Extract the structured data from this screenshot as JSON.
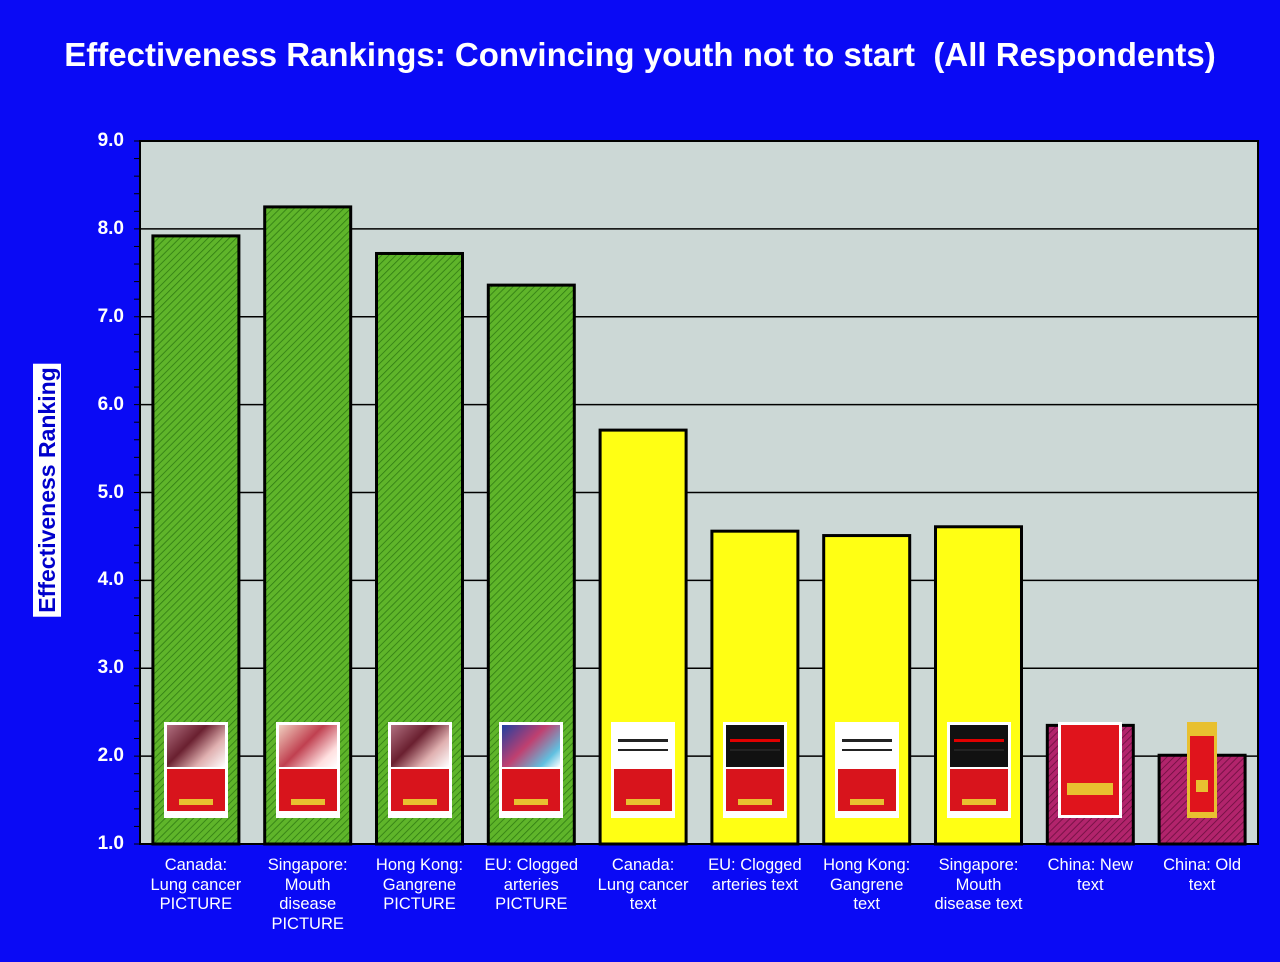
{
  "title": "Effectiveness Rankings: Convincing youth not to start  (All Respondents)",
  "colors": {
    "background": "#0a0af5",
    "plot_area": "#ccd8d6",
    "picture": "#66bb2c",
    "text": "#ffff14",
    "china": "#b0226a"
  },
  "chart_data": {
    "type": "bar",
    "title": "Effectiveness Rankings: Convincing youth not to start  (All Respondents)",
    "xlabel": "",
    "ylabel": "Effectiveness Ranking",
    "ylim": [
      1.0,
      9.0
    ],
    "yticks": [
      "1.0",
      "2.0",
      "3.0",
      "4.0",
      "5.0",
      "6.0",
      "7.0",
      "8.0",
      "9.0"
    ],
    "grid": true,
    "categories": [
      "Canada:\nLung cancer\nPICTURE",
      "Singapore:\nMouth\ndisease\nPICTURE",
      "Hong Kong:\nGangrene\nPICTURE",
      "EU: Clogged\narteries\nPICTURE",
      "Canada:\nLung cancer\ntext",
      "EU: Clogged\narteries text",
      "Hong Kong:\nGangrene\ntext",
      "Singapore:\nMouth\ndisease text",
      "China: New\ntext",
      "China: Old\ntext"
    ],
    "values": [
      7.92,
      8.25,
      7.72,
      7.36,
      5.71,
      4.56,
      4.51,
      4.61,
      2.35,
      2.01
    ],
    "bar_groups": [
      "picture",
      "picture",
      "picture",
      "picture",
      "text",
      "text",
      "text",
      "text",
      "china",
      "china"
    ]
  }
}
